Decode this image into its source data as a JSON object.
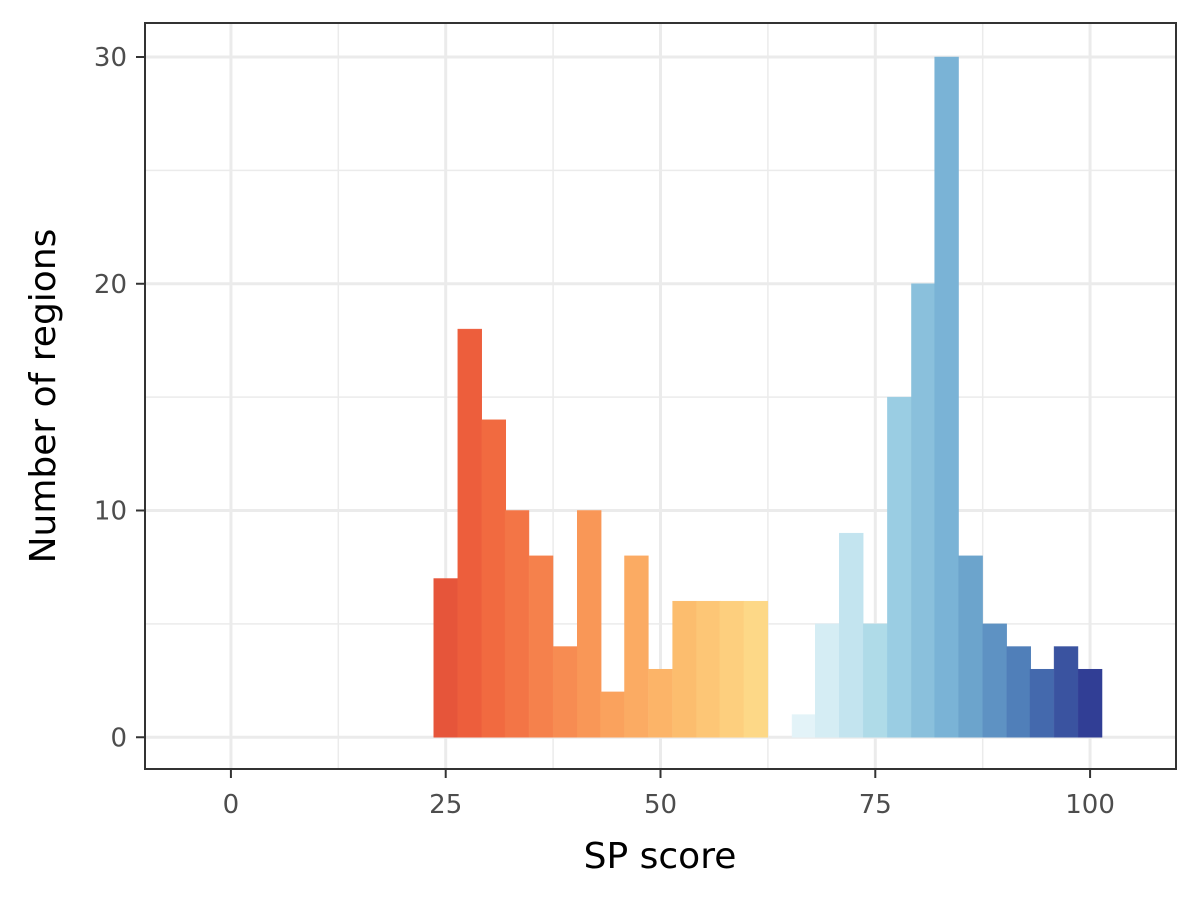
{
  "chart_data": {
    "type": "bar",
    "xlabel": "SP score",
    "ylabel": "Number of regions",
    "xlim": [
      -10,
      110
    ],
    "ylim": [
      -1.4,
      31.5
    ],
    "x_ticks": [
      0,
      25,
      50,
      75,
      100
    ],
    "x_tick_labels": [
      "0",
      "25",
      "50",
      "75",
      "100"
    ],
    "y_ticks": [
      0,
      10,
      20,
      30
    ],
    "y_tick_labels": [
      "0",
      "10",
      "20",
      "30"
    ],
    "grid": true,
    "legend": "none",
    "bin_width": 2.778,
    "bins": [
      {
        "x": 25.0,
        "count": 7,
        "color": "#e6553a"
      },
      {
        "x": 27.8,
        "count": 18,
        "color": "#ed5e3c"
      },
      {
        "x": 30.6,
        "count": 14,
        "color": "#f16a40"
      },
      {
        "x": 33.3,
        "count": 10,
        "color": "#f37546"
      },
      {
        "x": 36.1,
        "count": 8,
        "color": "#f5814c"
      },
      {
        "x": 38.9,
        "count": 4,
        "color": "#f78c52"
      },
      {
        "x": 41.7,
        "count": 10,
        "color": "#f99757"
      },
      {
        "x": 44.4,
        "count": 2,
        "color": "#faa25d"
      },
      {
        "x": 47.2,
        "count": 8,
        "color": "#fbab63"
      },
      {
        "x": 50.0,
        "count": 3,
        "color": "#fcb468"
      },
      {
        "x": 52.8,
        "count": 6,
        "color": "#fcbd6e"
      },
      {
        "x": 55.6,
        "count": 6,
        "color": "#fdc676"
      },
      {
        "x": 58.3,
        "count": 6,
        "color": "#fdcf7e"
      },
      {
        "x": 61.1,
        "count": 6,
        "color": "#fdd887"
      },
      {
        "x": 63.9,
        "count": 0,
        "color": "#f8f2d8"
      },
      {
        "x": 66.7,
        "count": 1,
        "color": "#e3f3f8"
      },
      {
        "x": 69.4,
        "count": 5,
        "color": "#d5edf4"
      },
      {
        "x": 72.2,
        "count": 9,
        "color": "#c3e4ef"
      },
      {
        "x": 75.0,
        "count": 5,
        "color": "#afdbe8"
      },
      {
        "x": 77.8,
        "count": 15,
        "color": "#9acde3"
      },
      {
        "x": 80.6,
        "count": 20,
        "color": "#8ac0dc"
      },
      {
        "x": 83.3,
        "count": 30,
        "color": "#7ab3d6"
      },
      {
        "x": 86.1,
        "count": 8,
        "color": "#6ca4cc"
      },
      {
        "x": 88.9,
        "count": 5,
        "color": "#5e92c3"
      },
      {
        "x": 91.7,
        "count": 4,
        "color": "#507fb9"
      },
      {
        "x": 94.4,
        "count": 3,
        "color": "#4469ad"
      },
      {
        "x": 97.2,
        "count": 4,
        "color": "#3a53a0"
      },
      {
        "x": 100.0,
        "count": 3,
        "color": "#313e95"
      }
    ]
  }
}
